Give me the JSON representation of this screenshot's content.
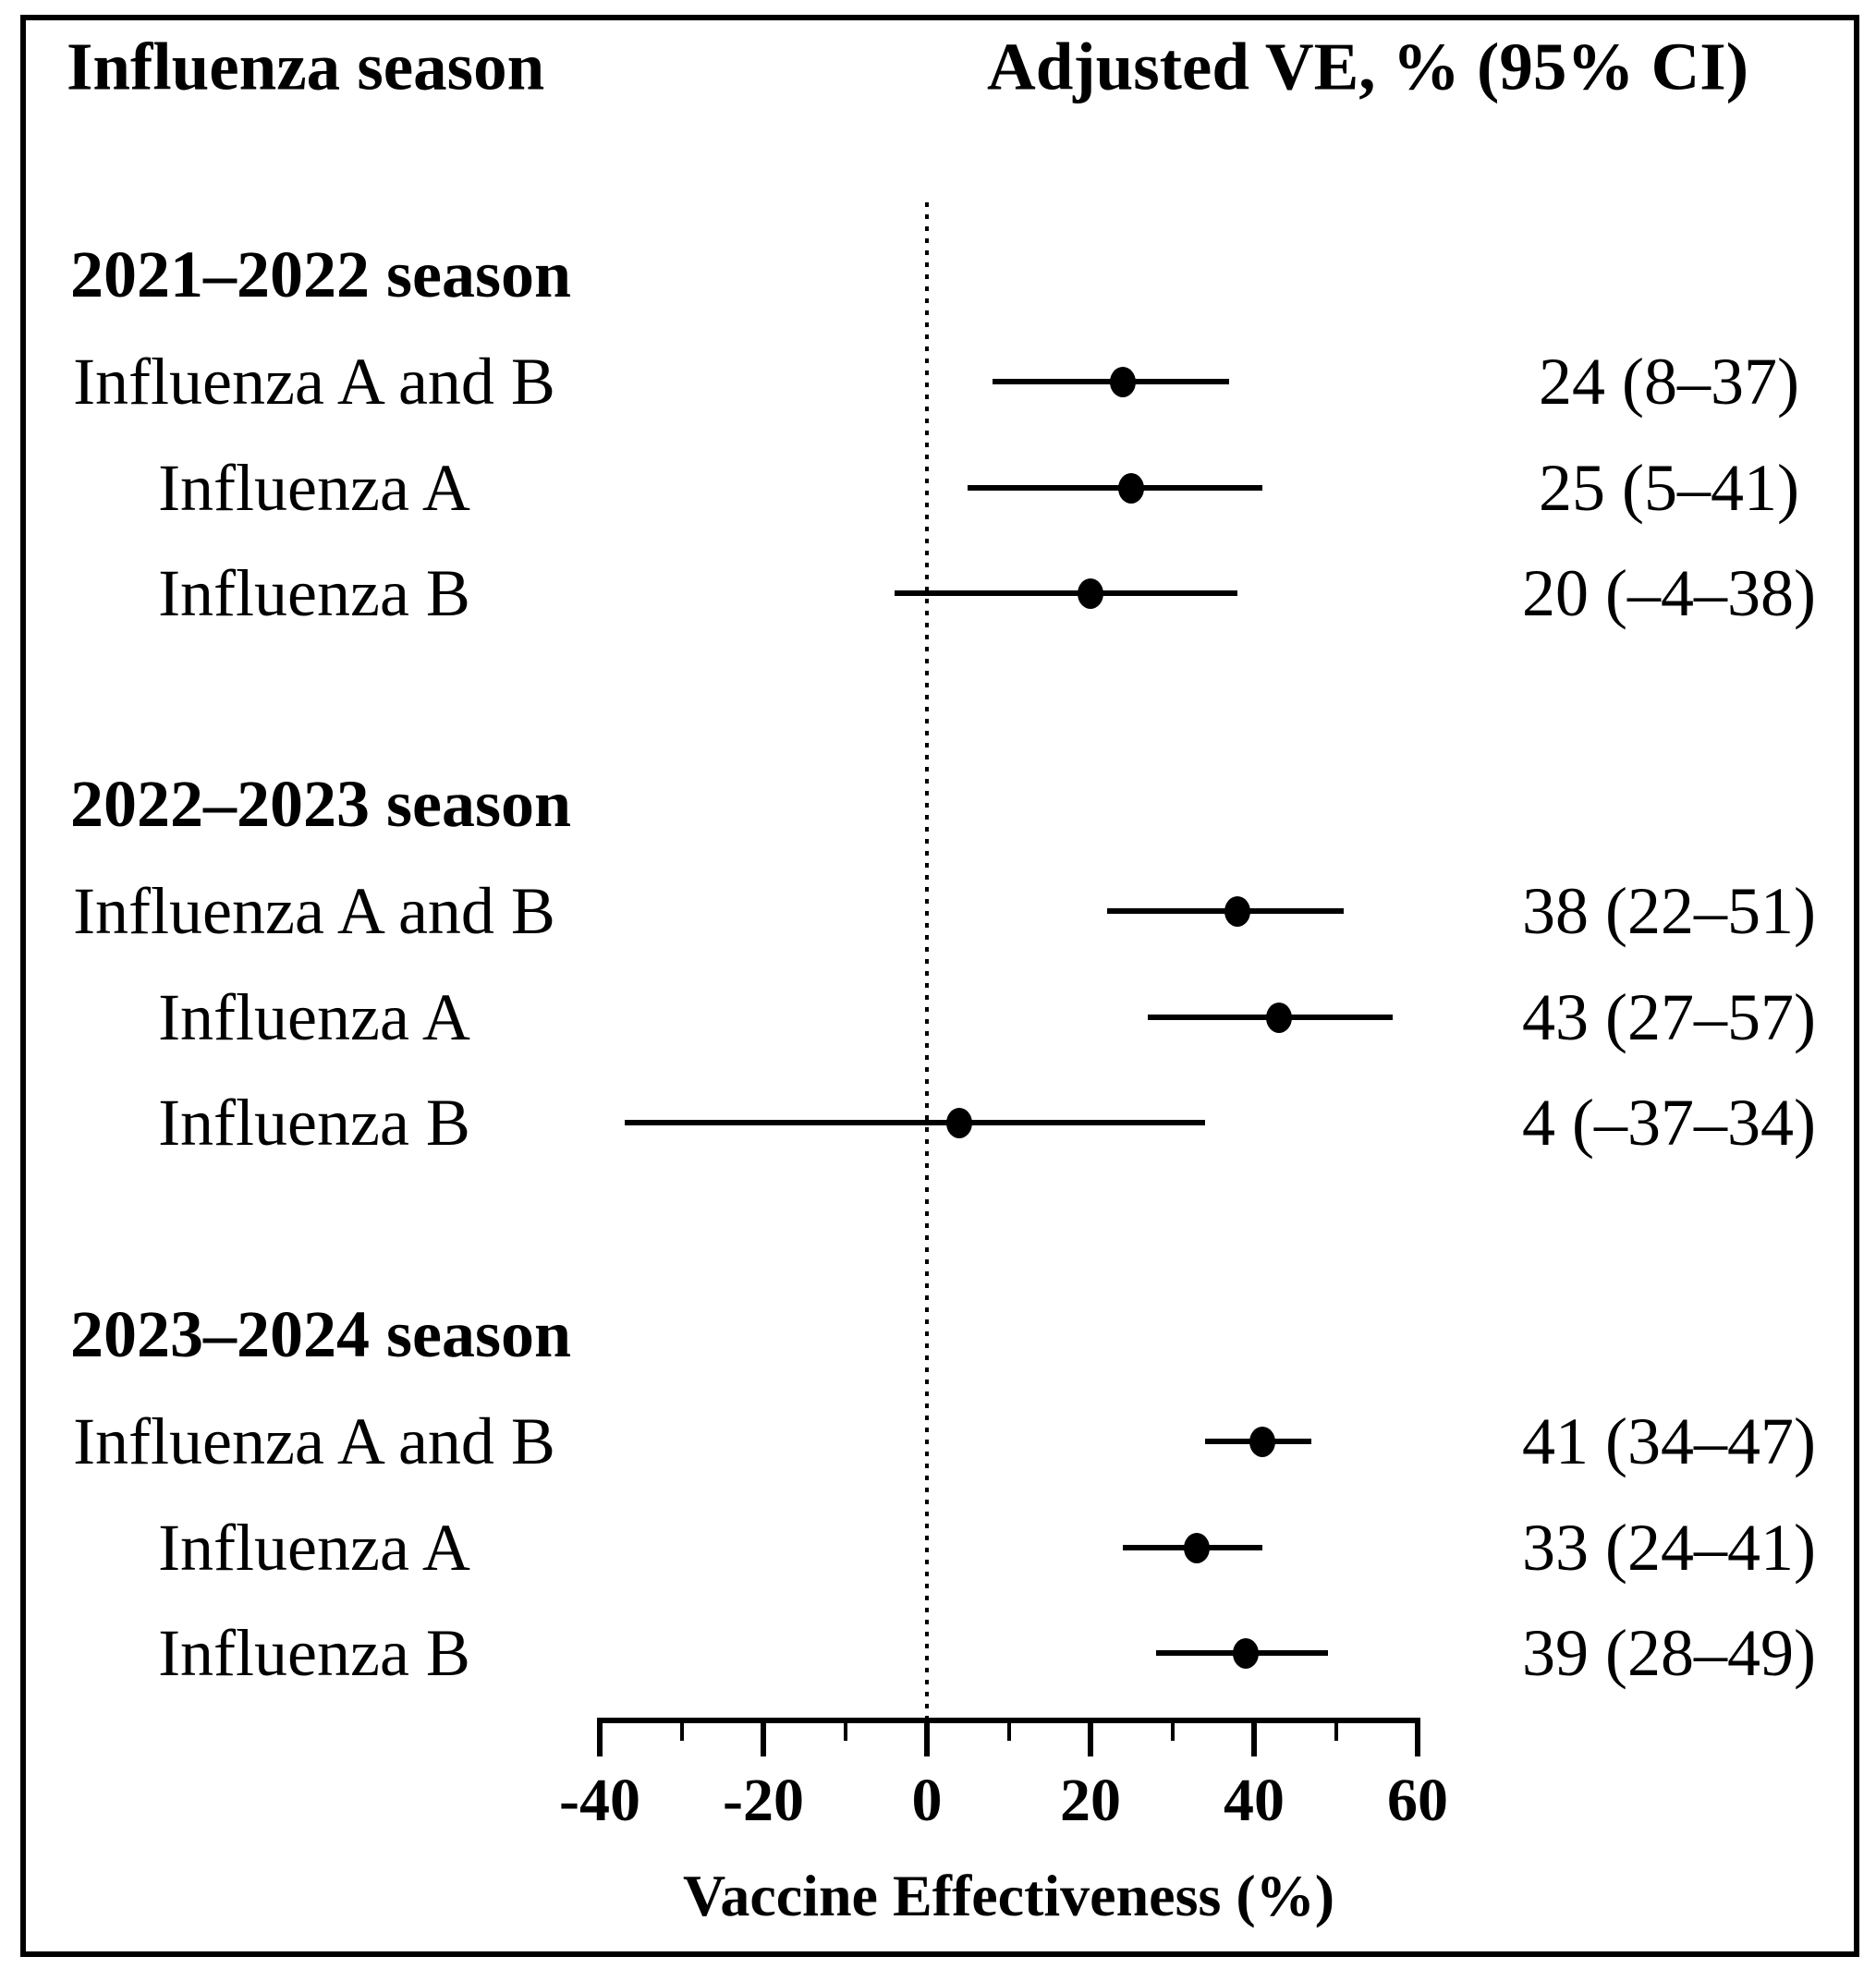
{
  "header": {
    "left": "Influenza season",
    "right": "Adjusted VE, % (95% CI)"
  },
  "chart_data": {
    "type": "forest",
    "xlabel": "Vaccine Effectiveness (%)",
    "x_axis": {
      "min": -40,
      "max": 60,
      "major_ticks": [
        -40,
        -20,
        0,
        20,
        40,
        60
      ],
      "major_tick_labels": [
        "-40",
        "-20",
        "0",
        "20",
        "40",
        "60"
      ],
      "minor_ticks": [
        -30,
        -10,
        10,
        30,
        50
      ],
      "reference_line_x": 0,
      "reference_line_style": "dotted"
    },
    "legend": "none",
    "grid": "off",
    "groups": [
      {
        "season": "2021–2022 season",
        "rows": [
          {
            "label": "Influenza A and B",
            "ve": 24,
            "ci_low": 8,
            "ci_high": 37,
            "display": "24 (8–37)"
          },
          {
            "label": "Influenza A",
            "ve": 25,
            "ci_low": 5,
            "ci_high": 41,
            "display": "25 (5–41)"
          },
          {
            "label": "Influenza B",
            "ve": 20,
            "ci_low": -4,
            "ci_high": 38,
            "display": "20 (–4–38)"
          }
        ]
      },
      {
        "season": "2022–2023 season",
        "rows": [
          {
            "label": "Influenza A and B",
            "ve": 38,
            "ci_low": 22,
            "ci_high": 51,
            "display": "38 (22–51)"
          },
          {
            "label": "Influenza A",
            "ve": 43,
            "ci_low": 27,
            "ci_high": 57,
            "display": "43 (27–57)"
          },
          {
            "label": "Influenza B",
            "ve": 4,
            "ci_low": -37,
            "ci_high": 34,
            "display": "4 (–37–34)"
          }
        ]
      },
      {
        "season": "2023–2024 season",
        "rows": [
          {
            "label": "Influenza A and B",
            "ve": 41,
            "ci_low": 34,
            "ci_high": 47,
            "display": "41 (34–47)"
          },
          {
            "label": "Influenza A",
            "ve": 33,
            "ci_low": 24,
            "ci_high": 41,
            "display": "33 (24–41)"
          },
          {
            "label": "Influenza B",
            "ve": 39,
            "ci_low": 28,
            "ci_high": 49,
            "display": "39 (28–49)"
          }
        ]
      }
    ]
  },
  "colors": {
    "ink": "#000000",
    "background": "#ffffff"
  }
}
